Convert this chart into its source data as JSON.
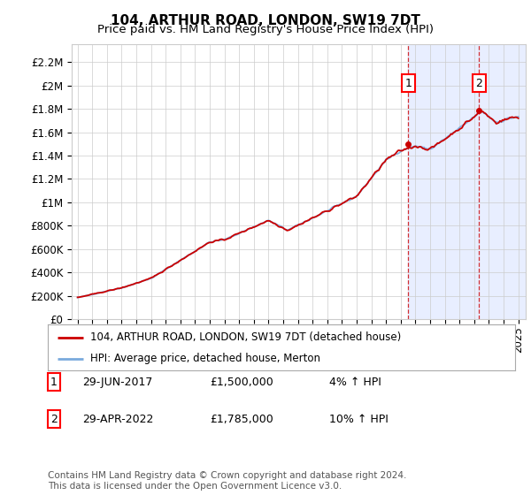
{
  "title": "104, ARTHUR ROAD, LONDON, SW19 7DT",
  "subtitle": "Price paid vs. HM Land Registry's House Price Index (HPI)",
  "ylabel_ticks": [
    "£0",
    "£200K",
    "£400K",
    "£600K",
    "£800K",
    "£1M",
    "£1.2M",
    "£1.4M",
    "£1.6M",
    "£1.8M",
    "£2M",
    "£2.2M"
  ],
  "ytick_values": [
    0,
    200000,
    400000,
    600000,
    800000,
    1000000,
    1200000,
    1400000,
    1600000,
    1800000,
    2000000,
    2200000
  ],
  "ylim": [
    0,
    2350000
  ],
  "hpi_color": "#7aaadd",
  "price_color": "#cc0000",
  "bg_color": "#ffffff",
  "grid_color": "#cccccc",
  "shade_color": "#e8eeff",
  "legend_label_price": "104, ARTHUR ROAD, LONDON, SW19 7DT (detached house)",
  "legend_label_hpi": "HPI: Average price, detached house, Merton",
  "annotation1_label": "1",
  "annotation1_date": "29-JUN-2017",
  "annotation1_price": "£1,500,000",
  "annotation1_hpi": "4% ↑ HPI",
  "annotation2_label": "2",
  "annotation2_date": "29-APR-2022",
  "annotation2_price": "£1,785,000",
  "annotation2_hpi": "10% ↑ HPI",
  "sale1_year": 2017.5,
  "sale1_value": 1500000,
  "sale2_year": 2022.33,
  "sale2_value": 1785000,
  "footer": "Contains HM Land Registry data © Crown copyright and database right 2024.\nThis data is licensed under the Open Government Licence v3.0.",
  "title_fontsize": 11,
  "subtitle_fontsize": 9.5,
  "tick_fontsize": 8.5,
  "legend_fontsize": 8.5,
  "annot_fontsize": 9
}
